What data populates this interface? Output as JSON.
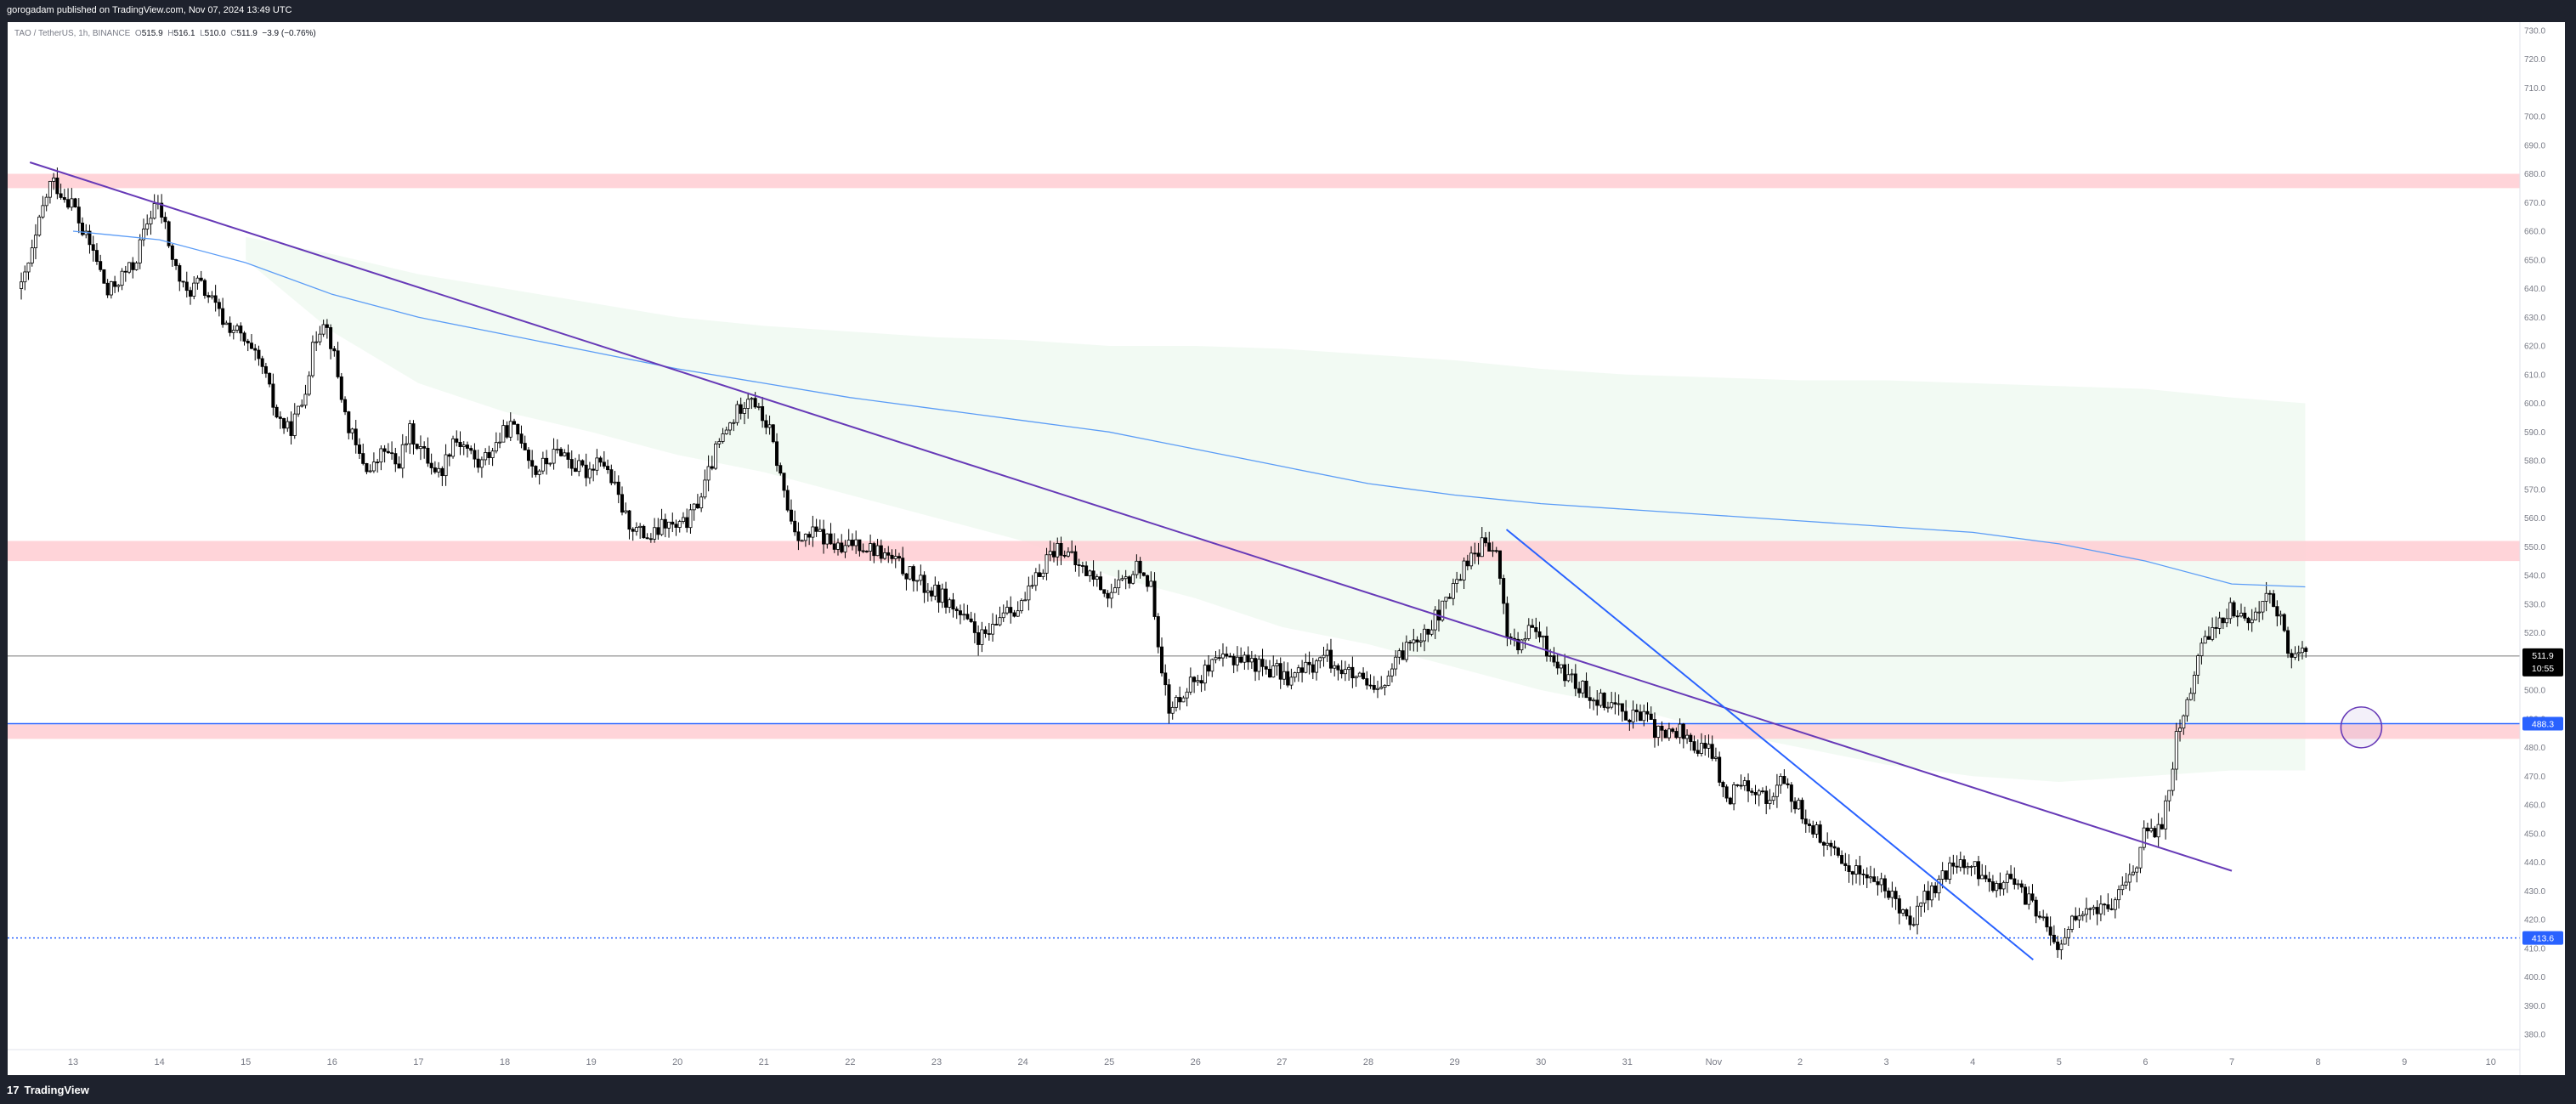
{
  "header": {
    "publish_text": "gorogadam published on TradingView.com, Nov 07, 2024 13:49 UTC"
  },
  "legend": {
    "symbol": "TAO / TetherUS, 1h, BINANCE",
    "open_label": "O",
    "open": "515.9",
    "high_label": "H",
    "high": "516.1",
    "low_label": "L",
    "low": "510.0",
    "close_label": "C",
    "close": "511.9",
    "change": "−3.9 (−0.76%)"
  },
  "footer": {
    "brand": "TradingView",
    "logo_icon": "tradingview-logo-icon"
  },
  "price_labels": {
    "last_price": "511.9",
    "countdown": "10:55",
    "support_line": "488.3",
    "dotted_line": "413.6"
  },
  "chart_data": {
    "type": "candlestick",
    "symbol": "TAO / TetherUS",
    "interval": "1h",
    "exchange": "BINANCE",
    "y_axis": {
      "ylim": [
        375,
        735
      ],
      "ticks": [
        380,
        390,
        400,
        410,
        420,
        430,
        440,
        450,
        460,
        470,
        480,
        490,
        500,
        510,
        520,
        530,
        540,
        550,
        560,
        570,
        580,
        590,
        600,
        610,
        620,
        630,
        640,
        650,
        660,
        670,
        680,
        690,
        700,
        710,
        720,
        730
      ],
      "tick_labels": [
        "380.0",
        "390.0",
        "400.0",
        "410.0",
        "420.0",
        "430.0",
        "440.0",
        "450.0",
        "460.0",
        "470.0",
        "480.0",
        "490.0",
        "500.0",
        "510.0",
        "520.0",
        "530.0",
        "540.0",
        "550.0",
        "560.0",
        "570.0",
        "580.0",
        "590.0",
        "600.0",
        "610.0",
        "620.0",
        "630.0",
        "640.0",
        "650.0",
        "660.0",
        "670.0",
        "680.0",
        "690.0",
        "700.0",
        "710.0",
        "720.0",
        "730.0"
      ]
    },
    "x_axis": {
      "tick_labels": [
        "13",
        "14",
        "15",
        "16",
        "17",
        "18",
        "19",
        "20",
        "21",
        "22",
        "23",
        "24",
        "25",
        "26",
        "27",
        "28",
        "29",
        "30",
        "31",
        "Nov",
        "2",
        "3",
        "4",
        "5",
        "6",
        "7",
        "8",
        "9",
        "10"
      ],
      "tick_index": [
        0,
        1,
        2,
        3,
        4,
        5,
        6,
        7,
        8,
        9,
        10,
        11,
        12,
        13,
        14,
        15,
        16,
        17,
        18,
        19,
        20,
        21,
        22,
        23,
        24,
        25,
        26,
        27,
        28
      ]
    },
    "path_points": [
      [
        -0.6,
        640
      ],
      [
        -0.45,
        655
      ],
      [
        -0.35,
        668
      ],
      [
        -0.25,
        678
      ],
      [
        -0.1,
        672
      ],
      [
        0.0,
        670
      ],
      [
        0.1,
        660
      ],
      [
        0.25,
        652
      ],
      [
        0.4,
        638
      ],
      [
        0.55,
        644
      ],
      [
        0.7,
        648
      ],
      [
        0.85,
        662
      ],
      [
        0.95,
        670
      ],
      [
        1.05,
        664
      ],
      [
        1.15,
        650
      ],
      [
        1.3,
        638
      ],
      [
        1.45,
        642
      ],
      [
        1.6,
        636
      ],
      [
        1.75,
        628
      ],
      [
        1.9,
        625
      ],
      [
        2.05,
        618
      ],
      [
        2.2,
        612
      ],
      [
        2.35,
        596
      ],
      [
        2.5,
        590
      ],
      [
        2.65,
        600
      ],
      [
        2.8,
        622
      ],
      [
        2.9,
        630
      ],
      [
        3.0,
        620
      ],
      [
        3.15,
        596
      ],
      [
        3.3,
        582
      ],
      [
        3.45,
        576
      ],
      [
        3.6,
        584
      ],
      [
        3.75,
        578
      ],
      [
        3.9,
        590
      ],
      [
        4.05,
        583
      ],
      [
        4.25,
        575
      ],
      [
        4.4,
        588
      ],
      [
        4.55,
        585
      ],
      [
        4.7,
        578
      ],
      [
        4.85,
        584
      ],
      [
        5.05,
        592
      ],
      [
        5.2,
        588
      ],
      [
        5.35,
        576
      ],
      [
        5.5,
        580
      ],
      [
        5.65,
        584
      ],
      [
        5.8,
        578
      ],
      [
        5.95,
        576
      ],
      [
        6.1,
        582
      ],
      [
        6.25,
        572
      ],
      [
        6.4,
        560
      ],
      [
        6.55,
        555
      ],
      [
        6.7,
        553
      ],
      [
        6.85,
        558
      ],
      [
        7.0,
        556
      ],
      [
        7.15,
        560
      ],
      [
        7.3,
        570
      ],
      [
        7.45,
        584
      ],
      [
        7.6,
        592
      ],
      [
        7.75,
        600
      ],
      [
        7.85,
        604
      ],
      [
        7.95,
        596
      ],
      [
        8.05,
        592
      ],
      [
        8.15,
        580
      ],
      [
        8.3,
        560
      ],
      [
        8.45,
        552
      ],
      [
        8.6,
        555
      ],
      [
        8.75,
        552
      ],
      [
        8.9,
        548
      ],
      [
        9.05,
        552
      ],
      [
        9.2,
        550
      ],
      [
        9.35,
        548
      ],
      [
        9.5,
        545
      ],
      [
        9.7,
        540
      ],
      [
        9.9,
        535
      ],
      [
        10.1,
        532
      ],
      [
        10.3,
        525
      ],
      [
        10.5,
        518
      ],
      [
        10.65,
        520
      ],
      [
        10.8,
        530
      ],
      [
        10.95,
        528
      ],
      [
        11.1,
        535
      ],
      [
        11.3,
        548
      ],
      [
        11.45,
        550
      ],
      [
        11.6,
        544
      ],
      [
        11.8,
        540
      ],
      [
        12.0,
        533
      ],
      [
        12.2,
        538
      ],
      [
        12.35,
        544
      ],
      [
        12.5,
        534
      ],
      [
        12.6,
        510
      ],
      [
        12.7,
        490
      ],
      [
        12.8,
        498
      ],
      [
        12.95,
        503
      ],
      [
        13.1,
        506
      ],
      [
        13.3,
        510
      ],
      [
        13.5,
        512
      ],
      [
        13.7,
        509
      ],
      [
        13.9,
        507
      ],
      [
        14.1,
        504
      ],
      [
        14.3,
        508
      ],
      [
        14.5,
        512
      ],
      [
        14.7,
        507
      ],
      [
        14.9,
        503
      ],
      [
        15.1,
        498
      ],
      [
        15.3,
        508
      ],
      [
        15.5,
        518
      ],
      [
        15.7,
        522
      ],
      [
        15.9,
        530
      ],
      [
        16.05,
        540
      ],
      [
        16.2,
        548
      ],
      [
        16.35,
        551
      ],
      [
        16.5,
        546
      ],
      [
        16.6,
        520
      ],
      [
        16.75,
        515
      ],
      [
        16.9,
        522
      ],
      [
        17.05,
        515
      ],
      [
        17.2,
        508
      ],
      [
        17.4,
        502
      ],
      [
        17.6,
        498
      ],
      [
        17.8,
        496
      ],
      [
        18.0,
        492
      ],
      [
        18.2,
        490
      ],
      [
        18.4,
        484
      ],
      [
        18.6,
        486
      ],
      [
        18.8,
        480
      ],
      [
        19.0,
        478
      ],
      [
        19.15,
        460
      ],
      [
        19.3,
        470
      ],
      [
        19.45,
        466
      ],
      [
        19.6,
        462
      ],
      [
        19.8,
        468
      ],
      [
        20.0,
        458
      ],
      [
        20.2,
        450
      ],
      [
        20.4,
        442
      ],
      [
        20.6,
        438
      ],
      [
        20.8,
        435
      ],
      [
        21.0,
        430
      ],
      [
        21.15,
        425
      ],
      [
        21.3,
        420
      ],
      [
        21.45,
        428
      ],
      [
        21.6,
        432
      ],
      [
        21.8,
        440
      ],
      [
        22.0,
        438
      ],
      [
        22.2,
        432
      ],
      [
        22.4,
        434
      ],
      [
        22.6,
        428
      ],
      [
        22.8,
        422
      ],
      [
        22.9,
        412
      ],
      [
        23.0,
        410
      ],
      [
        23.1,
        418
      ],
      [
        23.3,
        422
      ],
      [
        23.5,
        424
      ],
      [
        23.7,
        428
      ],
      [
        23.9,
        440
      ],
      [
        24.0,
        452
      ],
      [
        24.1,
        448
      ],
      [
        24.2,
        455
      ],
      [
        24.3,
        470
      ],
      [
        24.35,
        484
      ],
      [
        24.45,
        492
      ],
      [
        24.55,
        505
      ],
      [
        24.65,
        515
      ],
      [
        24.8,
        522
      ],
      [
        24.95,
        528
      ],
      [
        25.1,
        527
      ],
      [
        25.25,
        524
      ],
      [
        25.35,
        532
      ],
      [
        25.45,
        535
      ],
      [
        25.55,
        526
      ],
      [
        25.65,
        512
      ],
      [
        25.8,
        514
      ],
      [
        25.9,
        512
      ]
    ],
    "series": [
      {
        "name": "",
        "color": "#5b9cf6",
        "x": [
          0,
          1,
          2,
          3,
          4,
          5,
          6,
          7,
          8,
          9,
          10,
          11,
          12,
          13,
          14,
          15,
          16,
          17,
          18,
          19,
          20,
          21,
          22,
          23,
          24,
          25,
          25.85
        ],
        "values": [
          660,
          657,
          649,
          638,
          630,
          624,
          618,
          612,
          607,
          602,
          598,
          594,
          590,
          584,
          578,
          572,
          568,
          565,
          563,
          561,
          559,
          557,
          555,
          551,
          545,
          537,
          536
        ]
      }
    ],
    "band": {
      "color": "#e8f5e9",
      "x": [
        2,
        3,
        4,
        5,
        6,
        7,
        8,
        9,
        10,
        11,
        12,
        13,
        14,
        15,
        16,
        17,
        18,
        19,
        20,
        21,
        22,
        23,
        24,
        25,
        25.85
      ],
      "upper": [
        658,
        652,
        645,
        640,
        635,
        630,
        627,
        625,
        623,
        622,
        620,
        620,
        619,
        617,
        615,
        612,
        610,
        609,
        608,
        608,
        607,
        606,
        605,
        602,
        600
      ],
      "lower": [
        650,
        625,
        607,
        597,
        590,
        582,
        576,
        568,
        560,
        552,
        540,
        532,
        522,
        516,
        508,
        500,
        494,
        486,
        480,
        474,
        470,
        468,
        470,
        472,
        472
      ]
    },
    "zones": [
      {
        "from": 675,
        "to": 680,
        "color": "#ffcdd2"
      },
      {
        "from": 545,
        "to": 552,
        "color": "#ffcdd2"
      },
      {
        "from": 483,
        "to": 488,
        "color": "#ffcdd2"
      }
    ],
    "horizontal_lines": [
      {
        "value": 488.3,
        "color": "#2962ff",
        "style": "solid"
      },
      {
        "value": 511.9,
        "color": "#9e9e9e",
        "style": "solid"
      },
      {
        "value": 413.6,
        "color": "#2962ff",
        "style": "dotted"
      }
    ],
    "trendlines": [
      {
        "color": "#673ab7",
        "from": [
          -0.5,
          684
        ],
        "to": [
          25.0,
          437
        ]
      },
      {
        "color": "#2962ff",
        "from": [
          16.6,
          556
        ],
        "to": [
          22.7,
          406
        ]
      }
    ],
    "circle_marker": {
      "x": 26.5,
      "y": 487,
      "color": "#673ab7"
    },
    "last_price": 511.9
  }
}
